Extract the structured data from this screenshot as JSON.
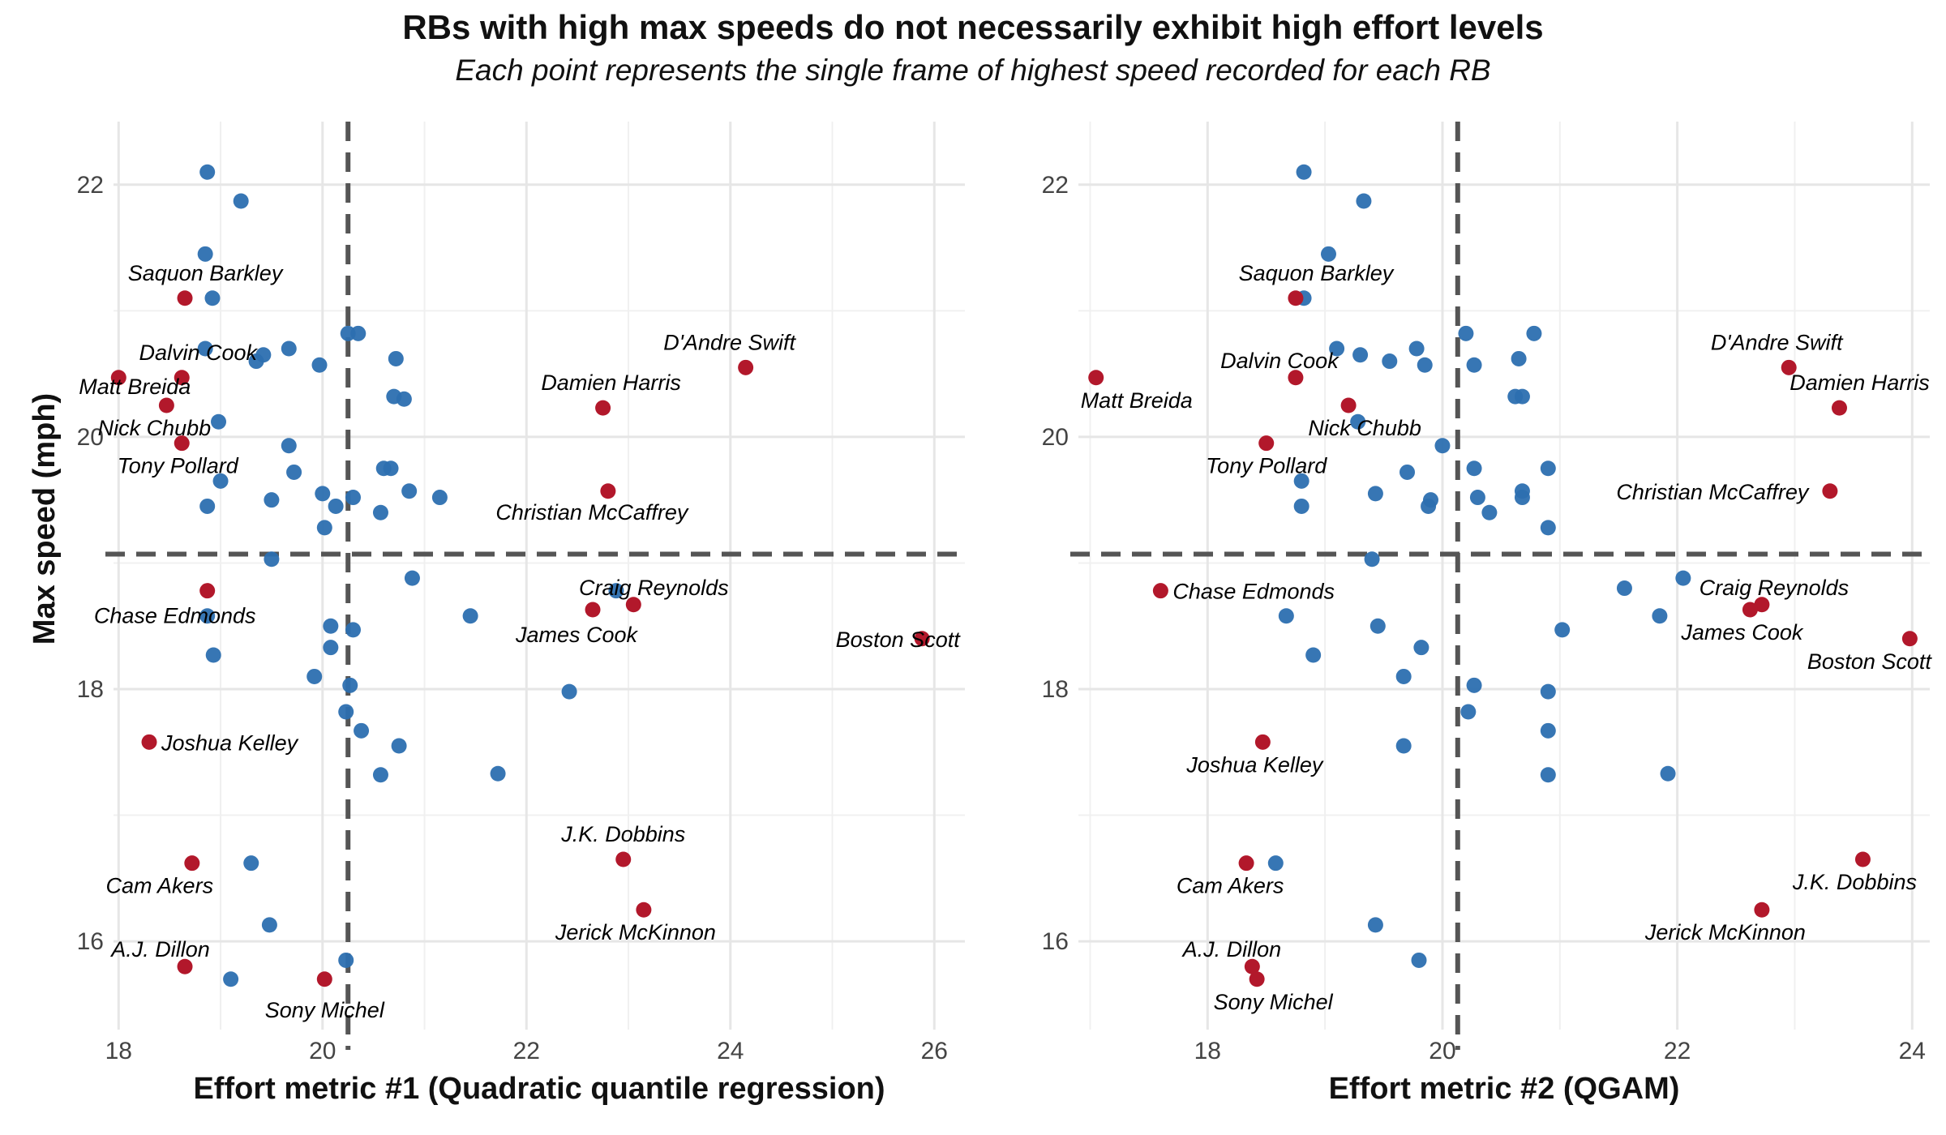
{
  "title": "RBs with high max speeds do not necessarily exhibit high effort levels",
  "subtitle": "Each point represents the single frame of highest speed recorded for each RB",
  "colors": {
    "highlight": "#b2182b",
    "other": "#2c6fb0",
    "ref_line": "#555555",
    "grid": "#e6e6e6"
  },
  "chart_data": [
    {
      "type": "scatter",
      "xlabel": "Effort metric #1 (Quadratic quantile regression)",
      "ylabel": "Max speed (mph)",
      "xlim": [
        17.95,
        26.3
      ],
      "ylim": [
        15.3,
        22.5
      ],
      "xticks": [
        "18",
        "20",
        "22",
        "24",
        "26"
      ],
      "yticks": [
        "16",
        "18",
        "20",
        "22"
      ],
      "grid": true,
      "vline": 20.25,
      "hline": 19.07,
      "highlighted": [
        {
          "name": "Saquon Barkley",
          "x": 18.65,
          "y": 21.1
        },
        {
          "name": "Dalvin Cook",
          "x": 18.62,
          "y": 20.47
        },
        {
          "name": "Matt Breida",
          "x": 18.0,
          "y": 20.47
        },
        {
          "name": "Nick Chubb",
          "x": 18.47,
          "y": 20.25
        },
        {
          "name": "Tony Pollard",
          "x": 18.62,
          "y": 19.95
        },
        {
          "name": "D'Andre Swift",
          "x": 24.15,
          "y": 20.55
        },
        {
          "name": "Damien Harris",
          "x": 22.75,
          "y": 20.23
        },
        {
          "name": "Christian McCaffrey",
          "x": 22.8,
          "y": 19.57
        },
        {
          "name": "Chase Edmonds",
          "x": 18.87,
          "y": 18.78
        },
        {
          "name": "Craig Reynolds",
          "x": 23.05,
          "y": 18.67
        },
        {
          "name": "James Cook",
          "x": 22.65,
          "y": 18.63
        },
        {
          "name": "Boston Scott",
          "x": 25.88,
          "y": 18.4
        },
        {
          "name": "Joshua Kelley",
          "x": 18.3,
          "y": 17.58
        },
        {
          "name": "Cam Akers",
          "x": 18.72,
          "y": 16.62
        },
        {
          "name": "J.K. Dobbins",
          "x": 22.95,
          "y": 16.65
        },
        {
          "name": "Jerick McKinnon",
          "x": 23.15,
          "y": 16.25
        },
        {
          "name": "A.J. Dillon",
          "x": 18.65,
          "y": 15.8
        },
        {
          "name": "Sony Michel",
          "x": 20.02,
          "y": 15.7
        }
      ],
      "others": [
        [
          18.87,
          22.1
        ],
        [
          19.2,
          21.87
        ],
        [
          18.85,
          21.45
        ],
        [
          18.92,
          21.1
        ],
        [
          18.85,
          20.7
        ],
        [
          19.35,
          20.6
        ],
        [
          19.42,
          20.65
        ],
        [
          19.67,
          20.7
        ],
        [
          19.97,
          20.57
        ],
        [
          20.25,
          20.82
        ],
        [
          20.35,
          20.82
        ],
        [
          20.72,
          20.62
        ],
        [
          20.7,
          20.32
        ],
        [
          20.8,
          20.3
        ],
        [
          18.98,
          20.12
        ],
        [
          19.67,
          19.93
        ],
        [
          19.72,
          19.72
        ],
        [
          20.6,
          19.75
        ],
        [
          20.67,
          19.75
        ],
        [
          19.0,
          19.65
        ],
        [
          18.87,
          19.45
        ],
        [
          19.5,
          19.5
        ],
        [
          20.0,
          19.55
        ],
        [
          20.13,
          19.45
        ],
        [
          20.3,
          19.52
        ],
        [
          20.57,
          19.4
        ],
        [
          20.85,
          19.57
        ],
        [
          21.15,
          19.52
        ],
        [
          20.02,
          19.28
        ],
        [
          19.5,
          19.03
        ],
        [
          20.88,
          18.88
        ],
        [
          22.88,
          18.78
        ],
        [
          21.45,
          18.58
        ],
        [
          18.87,
          18.58
        ],
        [
          20.08,
          18.5
        ],
        [
          20.3,
          18.47
        ],
        [
          18.93,
          18.27
        ],
        [
          20.08,
          18.33
        ],
        [
          19.92,
          18.1
        ],
        [
          20.27,
          18.03
        ],
        [
          22.42,
          17.98
        ],
        [
          20.23,
          17.82
        ],
        [
          20.38,
          17.67
        ],
        [
          20.75,
          17.55
        ],
        [
          20.57,
          17.32
        ],
        [
          21.72,
          17.33
        ],
        [
          19.3,
          16.62
        ],
        [
          19.48,
          16.13
        ],
        [
          20.23,
          15.85
        ],
        [
          19.1,
          15.7
        ]
      ]
    },
    {
      "type": "scatter",
      "xlabel": "Effort metric #2 (QGAM)",
      "ylabel": "Max speed (mph)",
      "xlim": [
        16.9,
        24.15
      ],
      "ylim": [
        15.3,
        22.5
      ],
      "xticks": [
        "18",
        "20",
        "22",
        "24"
      ],
      "yticks": [
        "16",
        "18",
        "20",
        "22"
      ],
      "grid": true,
      "vline": 20.13,
      "hline": 19.07,
      "highlighted": [
        {
          "name": "Saquon Barkley",
          "x": 18.75,
          "y": 21.1
        },
        {
          "name": "Matt Breida",
          "x": 17.05,
          "y": 20.47
        },
        {
          "name": "Dalvin Cook",
          "x": 18.75,
          "y": 20.47
        },
        {
          "name": "Nick Chubb",
          "x": 19.2,
          "y": 20.25
        },
        {
          "name": "Tony Pollard",
          "x": 18.5,
          "y": 19.95
        },
        {
          "name": "D'Andre Swift",
          "x": 22.95,
          "y": 20.55
        },
        {
          "name": "Damien Harris",
          "x": 23.38,
          "y": 20.23
        },
        {
          "name": "Christian McCaffrey",
          "x": 23.3,
          "y": 19.57
        },
        {
          "name": "Chase Edmonds",
          "x": 17.6,
          "y": 18.78
        },
        {
          "name": "Craig Reynolds",
          "x": 22.72,
          "y": 18.67
        },
        {
          "name": "James Cook",
          "x": 22.62,
          "y": 18.63
        },
        {
          "name": "Boston Scott",
          "x": 23.98,
          "y": 18.4
        },
        {
          "name": "Joshua Kelley",
          "x": 18.47,
          "y": 17.58
        },
        {
          "name": "Cam Akers",
          "x": 18.33,
          "y": 16.62
        },
        {
          "name": "J.K. Dobbins",
          "x": 23.58,
          "y": 16.65
        },
        {
          "name": "Jerick McKinnon",
          "x": 22.72,
          "y": 16.25
        },
        {
          "name": "A.J. Dillon",
          "x": 18.38,
          "y": 15.8
        },
        {
          "name": "Sony Michel",
          "x": 18.42,
          "y": 15.7
        }
      ],
      "others": [
        [
          18.82,
          22.1
        ],
        [
          19.33,
          21.87
        ],
        [
          19.03,
          21.45
        ],
        [
          18.82,
          21.1
        ],
        [
          19.1,
          20.7
        ],
        [
          19.3,
          20.65
        ],
        [
          19.55,
          20.6
        ],
        [
          19.78,
          20.7
        ],
        [
          19.85,
          20.57
        ],
        [
          20.2,
          20.82
        ],
        [
          20.27,
          20.57
        ],
        [
          20.65,
          20.62
        ],
        [
          20.78,
          20.82
        ],
        [
          20.62,
          20.32
        ],
        [
          20.68,
          20.32
        ],
        [
          19.28,
          20.12
        ],
        [
          20.0,
          19.93
        ],
        [
          19.7,
          19.72
        ],
        [
          20.27,
          19.75
        ],
        [
          20.9,
          19.75
        ],
        [
          18.8,
          19.65
        ],
        [
          18.8,
          19.45
        ],
        [
          19.43,
          19.55
        ],
        [
          19.9,
          19.5
        ],
        [
          19.88,
          19.45
        ],
        [
          20.3,
          19.52
        ],
        [
          20.4,
          19.4
        ],
        [
          20.68,
          19.57
        ],
        [
          20.68,
          19.52
        ],
        [
          20.9,
          19.28
        ],
        [
          19.4,
          19.03
        ],
        [
          21.55,
          18.8
        ],
        [
          22.05,
          18.88
        ],
        [
          21.85,
          18.58
        ],
        [
          18.67,
          18.58
        ],
        [
          19.45,
          18.5
        ],
        [
          21.02,
          18.47
        ],
        [
          18.9,
          18.27
        ],
        [
          19.82,
          18.33
        ],
        [
          19.67,
          18.1
        ],
        [
          20.27,
          18.03
        ],
        [
          20.9,
          17.98
        ],
        [
          20.22,
          17.82
        ],
        [
          20.9,
          17.67
        ],
        [
          19.67,
          17.55
        ],
        [
          20.9,
          17.32
        ],
        [
          21.92,
          17.33
        ],
        [
          18.58,
          16.62
        ],
        [
          19.43,
          16.13
        ],
        [
          19.8,
          15.85
        ]
      ]
    }
  ]
}
